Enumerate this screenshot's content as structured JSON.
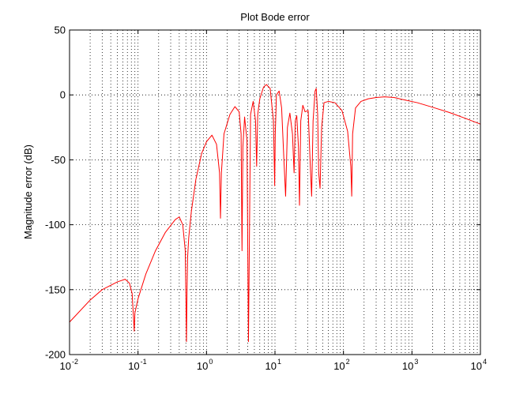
{
  "chart_data": {
    "type": "line",
    "title": "Plot Bode error",
    "xlabel": "",
    "ylabel": "Magnitude error (dB)",
    "xscale": "log",
    "xlim": [
      0.01,
      10000
    ],
    "ylim": [
      -200,
      50
    ],
    "grid": true,
    "grid_style": "dotted",
    "x_ticks": [
      {
        "base": "10",
        "exp": "-2",
        "value": 0.01
      },
      {
        "base": "10",
        "exp": "-1",
        "value": 0.1
      },
      {
        "base": "10",
        "exp": "0",
        "value": 1
      },
      {
        "base": "10",
        "exp": "1",
        "value": 10
      },
      {
        "base": "10",
        "exp": "2",
        "value": 100
      },
      {
        "base": "10",
        "exp": "3",
        "value": 1000
      },
      {
        "base": "10",
        "exp": "4",
        "value": 10000
      }
    ],
    "y_ticks": [
      {
        "label": "50",
        "value": 50
      },
      {
        "label": "0",
        "value": 0
      },
      {
        "label": "-50",
        "value": -50
      },
      {
        "label": "-100",
        "value": -100
      },
      {
        "label": "-150",
        "value": -150
      },
      {
        "label": "-200",
        "value": -200
      }
    ],
    "series": [
      {
        "color": "#ff0000",
        "x": [
          0.01,
          0.02,
          0.03,
          0.05,
          0.065,
          0.075,
          0.082,
          0.086,
          0.088,
          0.09,
          0.1,
          0.13,
          0.18,
          0.25,
          0.35,
          0.4,
          0.45,
          0.49,
          0.51,
          0.52,
          0.53,
          0.55,
          0.6,
          0.7,
          0.85,
          1.0,
          1.2,
          1.4,
          1.55,
          1.6,
          1.65,
          1.8,
          2.2,
          2.6,
          3.0,
          3.2,
          3.3,
          3.4,
          3.6,
          3.9,
          4.1,
          4.4,
          4.8,
          5.2,
          5.4,
          5.6,
          6.0,
          6.8,
          7.5,
          8.5,
          9.5,
          9.9,
          10.1,
          10.5,
          11.5,
          12.5,
          13.5,
          14.3,
          15.2,
          16.5,
          18.0,
          19.0,
          19.8,
          20.8,
          22.0,
          22.8,
          23.8,
          25.5,
          27.5,
          30.5,
          32.8,
          34.3,
          36.0,
          38.5,
          40.0,
          42.0,
          43.5,
          45.5,
          48.0,
          52.0,
          60.0,
          75.0,
          95.0,
          115.0,
          128.0,
          132.0,
          136.0,
          150.0,
          180.0,
          230.0,
          300.0,
          400.0,
          550.0,
          800.0,
          1200.0,
          2000.0,
          3500.0,
          6000.0,
          10000.0
        ],
        "y": [
          -175,
          -158,
          -150,
          -144,
          -142,
          -145,
          -153,
          -172,
          -182,
          -168,
          -157,
          -138,
          -120,
          -106,
          -96,
          -94,
          -100,
          -120,
          -190,
          -150,
          -125,
          -110,
          -90,
          -65,
          -45,
          -36,
          -31,
          -38,
          -60,
          -95,
          -60,
          -30,
          -15,
          -9,
          -13,
          -30,
          -120,
          -40,
          -17,
          -35,
          -190,
          -15,
          -5,
          -20,
          -55,
          -15,
          -3,
          6,
          8,
          5,
          -20,
          -70,
          -30,
          0,
          3,
          -10,
          -50,
          -78,
          -25,
          -14,
          -30,
          -60,
          -20,
          -16,
          -40,
          -85,
          -20,
          -8,
          -13,
          -12,
          -55,
          -78,
          -20,
          3,
          5,
          -15,
          -60,
          -72,
          -25,
          -6,
          -5,
          -6,
          -12,
          -28,
          -55,
          -78,
          -30,
          -10,
          -5,
          -3,
          -2,
          -1.5,
          -2,
          -4,
          -6,
          -9.5,
          -13.5,
          -18,
          -22.5
        ]
      }
    ]
  }
}
